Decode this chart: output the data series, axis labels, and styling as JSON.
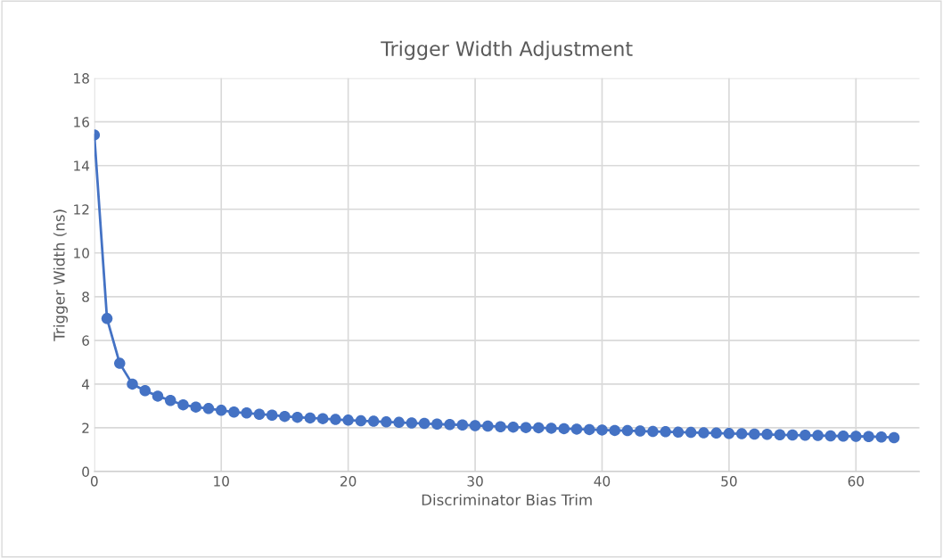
{
  "chart_data": {
    "type": "line",
    "title": "Trigger Width Adjustment",
    "xlabel": "Discriminator Bias Trim",
    "ylabel": "Trigger Width (ns)",
    "x": [
      0,
      1,
      2,
      3,
      4,
      5,
      6,
      7,
      8,
      9,
      10,
      11,
      12,
      13,
      14,
      15,
      16,
      17,
      18,
      19,
      20,
      21,
      22,
      23,
      24,
      25,
      26,
      27,
      28,
      29,
      30,
      31,
      32,
      33,
      34,
      35,
      36,
      37,
      38,
      39,
      40,
      41,
      42,
      43,
      44,
      45,
      46,
      47,
      48,
      49,
      50,
      51,
      52,
      53,
      54,
      55,
      56,
      57,
      58,
      59,
      60,
      61,
      62,
      63
    ],
    "series": [
      {
        "color": "#4472c4",
        "values": [
          15.4,
          7.0,
          4.95,
          4.0,
          3.7,
          3.45,
          3.25,
          3.05,
          2.95,
          2.88,
          2.8,
          2.72,
          2.68,
          2.62,
          2.58,
          2.52,
          2.48,
          2.45,
          2.42,
          2.38,
          2.35,
          2.32,
          2.3,
          2.27,
          2.25,
          2.22,
          2.2,
          2.17,
          2.15,
          2.13,
          2.1,
          2.08,
          2.05,
          2.03,
          2.01,
          2.0,
          1.98,
          1.96,
          1.94,
          1.92,
          1.9,
          1.88,
          1.87,
          1.85,
          1.83,
          1.82,
          1.8,
          1.79,
          1.77,
          1.76,
          1.74,
          1.73,
          1.71,
          1.7,
          1.68,
          1.67,
          1.66,
          1.65,
          1.63,
          1.62,
          1.61,
          1.6,
          1.58,
          1.55
        ]
      }
    ],
    "xlim": [
      0,
      65
    ],
    "xticks": [
      0,
      10,
      20,
      30,
      40,
      50,
      60
    ],
    "ylim": [
      0,
      18
    ],
    "yticks": [
      0,
      2,
      4,
      6,
      8,
      10,
      12,
      14,
      16,
      18
    ],
    "grid": true,
    "marker": "circle",
    "line_style": "solid"
  }
}
